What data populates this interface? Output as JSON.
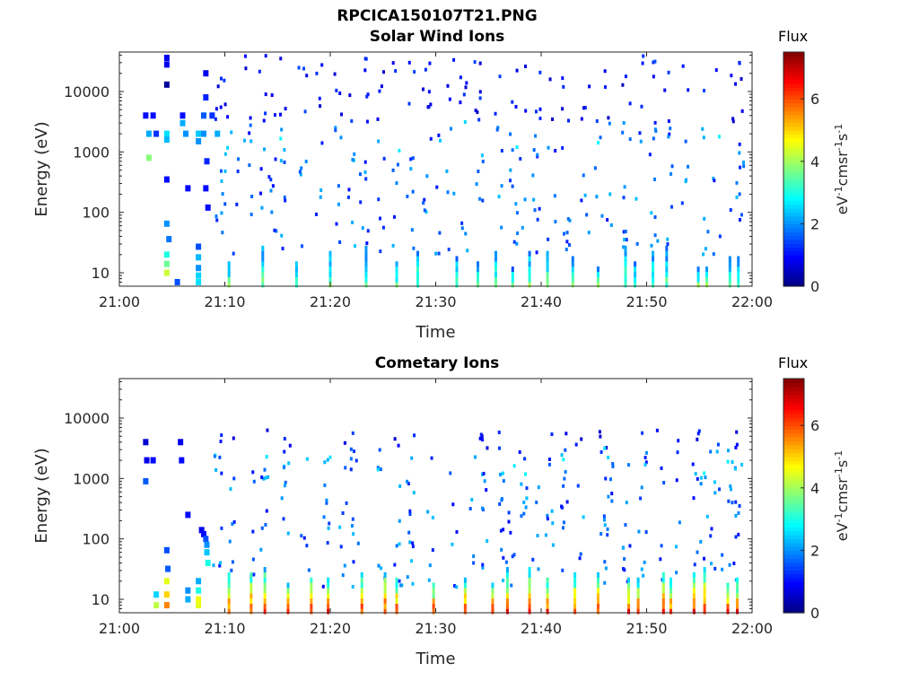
{
  "figure": {
    "title": "RPCICA150107T21.PNG"
  },
  "chart_data": [
    {
      "type": "heatmap",
      "title": "Solar Wind Ions",
      "xlabel": "Time",
      "ylabel": "Energy (eV)",
      "x_ticks": [
        "21:00",
        "21:10",
        "21:20",
        "21:30",
        "21:40",
        "21:50",
        "22:00"
      ],
      "x_range": [
        "21:00",
        "22:00"
      ],
      "y_scale": "log",
      "y_ticks": [
        10,
        100,
        1000,
        10000
      ],
      "y_range": [
        6,
        45000
      ],
      "colorbar": {
        "title": "Flux",
        "label": "eV-1cm-2sr-1s-1",
        "ticks": [
          0,
          2,
          4,
          6
        ],
        "range": [
          0,
          7.5
        ],
        "colormap": "jet"
      },
      "cells": [
        {
          "t": 4.5,
          "e": 36000,
          "v": 0.8
        },
        {
          "t": 4.5,
          "e": 28000,
          "v": 0.8
        },
        {
          "t": 4.5,
          "e": 13000,
          "v": 0.2
        },
        {
          "t": 2.5,
          "e": 4000,
          "v": 1.0
        },
        {
          "t": 3.2,
          "e": 4000,
          "v": 1.0
        },
        {
          "t": 2.8,
          "e": 2000,
          "v": 2.2
        },
        {
          "t": 3.5,
          "e": 2000,
          "v": 1.3
        },
        {
          "t": 4.5,
          "e": 2000,
          "v": 2.6
        },
        {
          "t": 4.5,
          "e": 1600,
          "v": 2.3
        },
        {
          "t": 2.8,
          "e": 800,
          "v": 3.8
        },
        {
          "t": 4.5,
          "e": 350,
          "v": 1.0
        },
        {
          "t": 4.5,
          "e": 65,
          "v": 2.0
        },
        {
          "t": 4.7,
          "e": 36,
          "v": 1.8
        },
        {
          "t": 4.5,
          "e": 20,
          "v": 3.0
        },
        {
          "t": 4.5,
          "e": 14,
          "v": 3.6
        },
        {
          "t": 4.5,
          "e": 10,
          "v": 4.3
        },
        {
          "t": 5.5,
          "e": 7,
          "v": 1.5
        },
        {
          "t": 6.0,
          "e": 4000,
          "v": 1.0
        },
        {
          "t": 6.3,
          "e": 2000,
          "v": 2.0
        },
        {
          "t": 6.0,
          "e": 3000,
          "v": 2.2
        },
        {
          "t": 6.5,
          "e": 250,
          "v": 1.0
        },
        {
          "t": 7.5,
          "e": 27,
          "v": 1.5
        },
        {
          "t": 7.5,
          "e": 18,
          "v": 2.3
        },
        {
          "t": 7.5,
          "e": 12,
          "v": 2.0
        },
        {
          "t": 7.5,
          "e": 9,
          "v": 2.5
        },
        {
          "t": 7.5,
          "e": 7,
          "v": 2.6
        },
        {
          "t": 7.5,
          "e": 2000,
          "v": 2.4
        },
        {
          "t": 7.5,
          "e": 1500,
          "v": 2.0
        },
        {
          "t": 8.2,
          "e": 20000,
          "v": 0.8
        },
        {
          "t": 8.2,
          "e": 8000,
          "v": 1.2
        },
        {
          "t": 8.0,
          "e": 4000,
          "v": 1.6
        },
        {
          "t": 8.0,
          "e": 2000,
          "v": 2.0
        },
        {
          "t": 8.3,
          "e": 700,
          "v": 1.2
        },
        {
          "t": 8.2,
          "e": 250,
          "v": 1.0
        },
        {
          "t": 8.4,
          "e": 120,
          "v": 1.0
        },
        {
          "t": 8.8,
          "e": 4000,
          "v": 1.3
        },
        {
          "t": 9.3,
          "e": 2000,
          "v": 2.2
        }
      ],
      "sparse_columns_min": [
        9.4,
        10.1,
        11.0,
        12.2,
        13.6,
        14.5,
        15.5,
        17.4,
        18.9,
        20.8,
        22.1,
        23.2,
        24.9,
        26.3,
        27.6,
        29.2,
        30.4,
        31.4,
        32.6,
        34.1,
        35.9,
        37.4,
        38.4,
        39.6,
        41.0,
        42.4,
        44.2,
        45.5,
        46.3,
        48.1,
        49.3,
        50.7,
        52.1,
        53.7,
        55.5,
        56.7,
        58.2,
        58.9
      ],
      "bursts_low_energy_min": [
        10.4,
        13.6,
        16.8,
        20.0,
        23.4,
        26.3,
        28.3,
        32.0,
        34.0,
        35.7,
        37.3,
        38.9,
        40.6,
        43.0,
        45.4,
        48.0,
        48.9,
        50.6,
        51.9,
        54.9,
        55.7,
        57.9,
        58.7
      ]
    },
    {
      "type": "heatmap",
      "title": "Cometary Ions",
      "xlabel": "Time",
      "ylabel": "Energy (eV)",
      "x_ticks": [
        "21:00",
        "21:10",
        "21:20",
        "21:30",
        "21:40",
        "21:50",
        "22:00"
      ],
      "x_range": [
        "21:00",
        "22:00"
      ],
      "y_scale": "log",
      "y_ticks": [
        10,
        100,
        1000,
        10000
      ],
      "y_range": [
        6,
        45000
      ],
      "colorbar": {
        "title": "Flux",
        "label": "eV-1cm-2sr-1s-1",
        "ticks": [
          0,
          2,
          4,
          6
        ],
        "range": [
          0,
          7.5
        ],
        "colormap": "jet"
      },
      "cells": [
        {
          "t": 2.5,
          "e": 4000,
          "v": 0.6
        },
        {
          "t": 2.6,
          "e": 2000,
          "v": 0.8
        },
        {
          "t": 3.2,
          "e": 2000,
          "v": 1.0
        },
        {
          "t": 2.5,
          "e": 900,
          "v": 1.6
        },
        {
          "t": 5.8,
          "e": 4000,
          "v": 0.8
        },
        {
          "t": 5.9,
          "e": 2000,
          "v": 1.0
        },
        {
          "t": 6.5,
          "e": 250,
          "v": 1.0
        },
        {
          "t": 4.5,
          "e": 65,
          "v": 1.5
        },
        {
          "t": 4.6,
          "e": 32,
          "v": 1.6
        },
        {
          "t": 4.5,
          "e": 20,
          "v": 4.5
        },
        {
          "t": 3.5,
          "e": 12,
          "v": 2.5
        },
        {
          "t": 4.5,
          "e": 12,
          "v": 5.0
        },
        {
          "t": 4.5,
          "e": 8,
          "v": 5.6
        },
        {
          "t": 3.5,
          "e": 8,
          "v": 4.2
        },
        {
          "t": 6.5,
          "e": 14,
          "v": 2.0
        },
        {
          "t": 6.5,
          "e": 10,
          "v": 2.2
        },
        {
          "t": 7.5,
          "e": 10,
          "v": 4.6
        },
        {
          "t": 7.5,
          "e": 8,
          "v": 4.5
        },
        {
          "t": 7.5,
          "e": 14,
          "v": 3.0
        },
        {
          "t": 7.5,
          "e": 20,
          "v": 2.2
        },
        {
          "t": 7.8,
          "e": 140,
          "v": 0.8
        },
        {
          "t": 8.0,
          "e": 120,
          "v": 1.0
        },
        {
          "t": 8.2,
          "e": 100,
          "v": 1.5
        },
        {
          "t": 8.3,
          "e": 80,
          "v": 2.0
        },
        {
          "t": 8.3,
          "e": 60,
          "v": 2.4
        },
        {
          "t": 8.4,
          "e": 40,
          "v": 3.0
        }
      ],
      "sparse_columns_min": [
        9.3,
        10.8,
        12.4,
        13.8,
        15.8,
        17.6,
        19.6,
        21.3,
        22.3,
        24.9,
        26.4,
        27.6,
        29.5,
        31.7,
        33.4,
        34.6,
        36.4,
        37.1,
        38.3,
        39.5,
        40.8,
        42.3,
        43.7,
        45.9,
        46.6,
        48.1,
        49.6,
        51.4,
        52.9,
        54.8,
        55.8,
        56.8,
        58.1,
        58.8
      ],
      "bursts_low_energy_min": [
        10.4,
        12.5,
        13.8,
        16.0,
        18.2,
        19.8,
        23.0,
        25.2,
        26.3,
        29.8,
        32.8,
        35.4,
        36.8,
        38.9,
        40.6,
        43.2,
        45.4,
        48.3,
        49.2,
        51.6,
        52.3,
        54.5,
        55.5,
        57.7,
        58.6
      ]
    }
  ]
}
